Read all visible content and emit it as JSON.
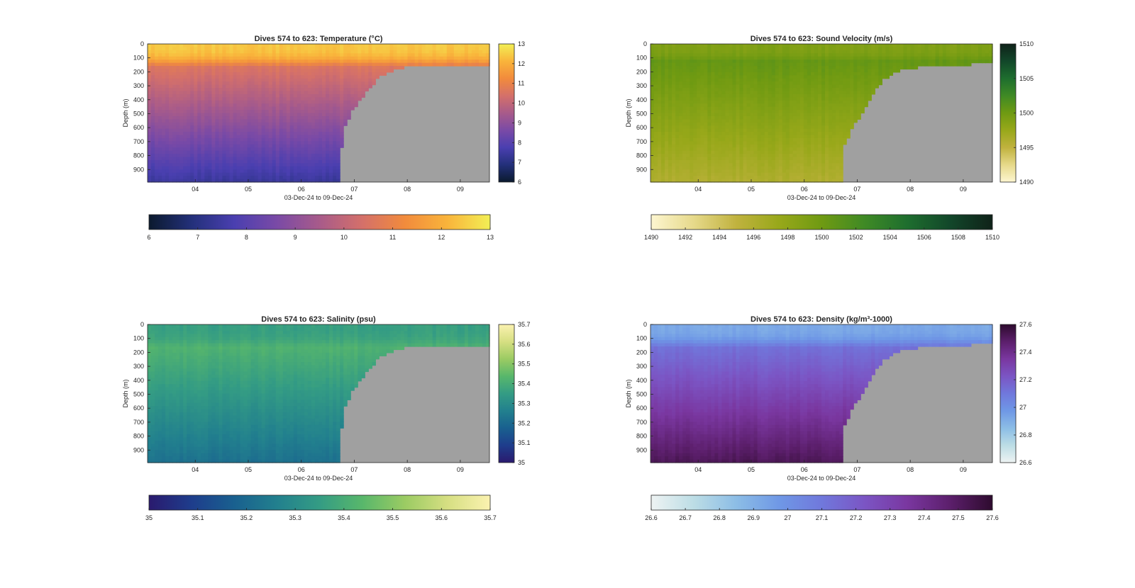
{
  "figure": {
    "background": "#ffffff",
    "panel_background": "#a0a0a0",
    "axis_color": "#262626"
  },
  "chart_data": [
    {
      "id": "temperature",
      "type": "heatmap",
      "title": "Dives 574 to 623: Temperature (°C)",
      "xlabel": "03-Dec-24 to 09-Dec-24",
      "ylabel": "Depth (m)",
      "x_tick_labels": [
        "04",
        "05",
        "06",
        "07",
        "08",
        "09"
      ],
      "x_ticks_days": [
        4,
        5,
        6,
        7,
        8,
        9
      ],
      "xlim_days": [
        3.1,
        9.55
      ],
      "y_tick_labels": [
        "0",
        "100",
        "200",
        "300",
        "400",
        "500",
        "600",
        "700",
        "800",
        "900"
      ],
      "ylim_m": [
        0,
        990
      ],
      "colorbar_vertical_labels": [
        "13",
        "12",
        "11",
        "10",
        "9",
        "8",
        "7",
        "6"
      ],
      "colorbar_horizontal_labels": [
        "6",
        "7",
        "8",
        "9",
        "10",
        "11",
        "12",
        "13"
      ],
      "clim": [
        6,
        13
      ],
      "colormap": [
        "#0b1a2e",
        "#23307a",
        "#4a3fb0",
        "#7a4aa6",
        "#a85b8a",
        "#d4706a",
        "#f28b3c",
        "#f9b43b",
        "#f2ef55"
      ],
      "surface_value": 12.4,
      "thermocline_value": 10.6,
      "deep_value": 7.4,
      "mixed_layer_depth_m": 160,
      "shelf_profile": [
        [
          3.1,
          990
        ],
        [
          6.7,
          990
        ],
        [
          6.8,
          600
        ],
        [
          6.95,
          490
        ],
        [
          7.15,
          380
        ],
        [
          7.3,
          320
        ],
        [
          7.45,
          240
        ],
        [
          7.7,
          200
        ],
        [
          7.9,
          170
        ],
        [
          8.2,
          160
        ],
        [
          8.6,
          150
        ],
        [
          9.55,
          150
        ]
      ]
    },
    {
      "id": "sound_velocity",
      "type": "heatmap",
      "title": "Dives 574 to 623: Sound Velocity (m/s)",
      "xlabel": "03-Dec-24 to 09-Dec-24",
      "ylabel": "Depth (m)",
      "x_tick_labels": [
        "04",
        "05",
        "06",
        "07",
        "08",
        "09"
      ],
      "x_ticks_days": [
        4,
        5,
        6,
        7,
        8,
        9
      ],
      "xlim_days": [
        3.1,
        9.55
      ],
      "y_tick_labels": [
        "0",
        "100",
        "200",
        "300",
        "400",
        "500",
        "600",
        "700",
        "800",
        "900"
      ],
      "ylim_m": [
        0,
        990
      ],
      "colorbar_vertical_labels": [
        "1510",
        "1505",
        "1500",
        "1495",
        "1490"
      ],
      "colorbar_horizontal_labels": [
        "1490",
        "1492",
        "1494",
        "1496",
        "1498",
        "1500",
        "1502",
        "1504",
        "1506",
        "1508",
        "1510"
      ],
      "clim": [
        1490,
        1510
      ],
      "colormap": [
        "#fdf6d0",
        "#e6d98a",
        "#c0b23e",
        "#98a81a",
        "#6f9a12",
        "#3f8a25",
        "#1e6e2e",
        "#12472a",
        "#0f2219"
      ],
      "surface_value": 1499.0,
      "thermocline_value": 1500.6,
      "deep_value": 1496.0,
      "mixed_layer_depth_m": 120,
      "shelf_profile": [
        [
          3.1,
          990
        ],
        [
          6.7,
          990
        ],
        [
          6.75,
          740
        ],
        [
          6.9,
          600
        ],
        [
          7.05,
          520
        ],
        [
          7.2,
          420
        ],
        [
          7.35,
          330
        ],
        [
          7.5,
          250
        ],
        [
          7.7,
          210
        ],
        [
          7.9,
          180
        ],
        [
          8.3,
          160
        ],
        [
          8.9,
          150
        ],
        [
          9.55,
          140
        ]
      ]
    },
    {
      "id": "salinity",
      "type": "heatmap",
      "title": "Dives 574 to 623: Salinity (psu)",
      "xlabel": "03-Dec-24 to 09-Dec-24",
      "ylabel": "Depth (m)",
      "x_tick_labels": [
        "04",
        "05",
        "06",
        "07",
        "08",
        "09"
      ],
      "x_ticks_days": [
        4,
        5,
        6,
        7,
        8,
        9
      ],
      "xlim_days": [
        3.1,
        9.55
      ],
      "y_tick_labels": [
        "0",
        "100",
        "200",
        "300",
        "400",
        "500",
        "600",
        "700",
        "800",
        "900"
      ],
      "ylim_m": [
        0,
        990
      ],
      "colorbar_vertical_labels": [
        "35.7",
        "35.6",
        "35.5",
        "35.4",
        "35.3",
        "35.2",
        "35.1",
        "35"
      ],
      "colorbar_horizontal_labels": [
        "35",
        "35.1",
        "35.2",
        "35.3",
        "35.4",
        "35.5",
        "35.6",
        "35.7"
      ],
      "clim": [
        35.0,
        35.7
      ],
      "colormap": [
        "#2a1a6e",
        "#1e3d8c",
        "#19608f",
        "#22808e",
        "#349c84",
        "#58b76b",
        "#9bcb63",
        "#d6df82",
        "#fbf2b0"
      ],
      "surface_value": 35.36,
      "thermocline_value": 35.42,
      "deep_value": 35.22,
      "mixed_layer_depth_m": 160,
      "shelf_profile": [
        [
          3.1,
          990
        ],
        [
          6.7,
          990
        ],
        [
          6.8,
          600
        ],
        [
          6.95,
          490
        ],
        [
          7.15,
          380
        ],
        [
          7.3,
          320
        ],
        [
          7.45,
          240
        ],
        [
          7.7,
          200
        ],
        [
          7.9,
          170
        ],
        [
          8.2,
          160
        ],
        [
          8.6,
          150
        ],
        [
          9.55,
          150
        ]
      ]
    },
    {
      "id": "density",
      "type": "heatmap",
      "title": "Dives 574 to 623: Density (kg/m³-1000)",
      "xlabel": "03-Dec-24 to 09-Dec-24",
      "ylabel": "Depth (m)",
      "x_tick_labels": [
        "04",
        "05",
        "06",
        "07",
        "08",
        "09"
      ],
      "x_ticks_days": [
        4,
        5,
        6,
        7,
        8,
        9
      ],
      "xlim_days": [
        3.1,
        9.55
      ],
      "y_tick_labels": [
        "0",
        "100",
        "200",
        "300",
        "400",
        "500",
        "600",
        "700",
        "800",
        "900"
      ],
      "ylim_m": [
        0,
        990
      ],
      "colorbar_vertical_labels": [
        "27.6",
        "27.4",
        "27.2",
        "27",
        "26.8",
        "26.6"
      ],
      "colorbar_horizontal_labels": [
        "26.6",
        "26.7",
        "26.8",
        "26.9",
        "27",
        "27.1",
        "27.2",
        "27.3",
        "27.4",
        "27.5",
        "27.6"
      ],
      "clim": [
        26.6,
        27.6
      ],
      "colormap": [
        "#eef3f3",
        "#bcdde5",
        "#8cbde6",
        "#6f98e6",
        "#7078dc",
        "#7b55c4",
        "#7a37a0",
        "#5c1f6c",
        "#2e0b2e"
      ],
      "surface_value": 26.92,
      "thermocline_value": 27.12,
      "deep_value": 27.52,
      "mixed_layer_depth_m": 160,
      "shelf_profile": [
        [
          3.1,
          990
        ],
        [
          6.7,
          990
        ],
        [
          6.75,
          740
        ],
        [
          6.9,
          600
        ],
        [
          7.05,
          520
        ],
        [
          7.2,
          420
        ],
        [
          7.35,
          330
        ],
        [
          7.5,
          250
        ],
        [
          7.7,
          210
        ],
        [
          7.9,
          180
        ],
        [
          8.3,
          160
        ],
        [
          8.9,
          150
        ],
        [
          9.55,
          140
        ]
      ]
    }
  ]
}
